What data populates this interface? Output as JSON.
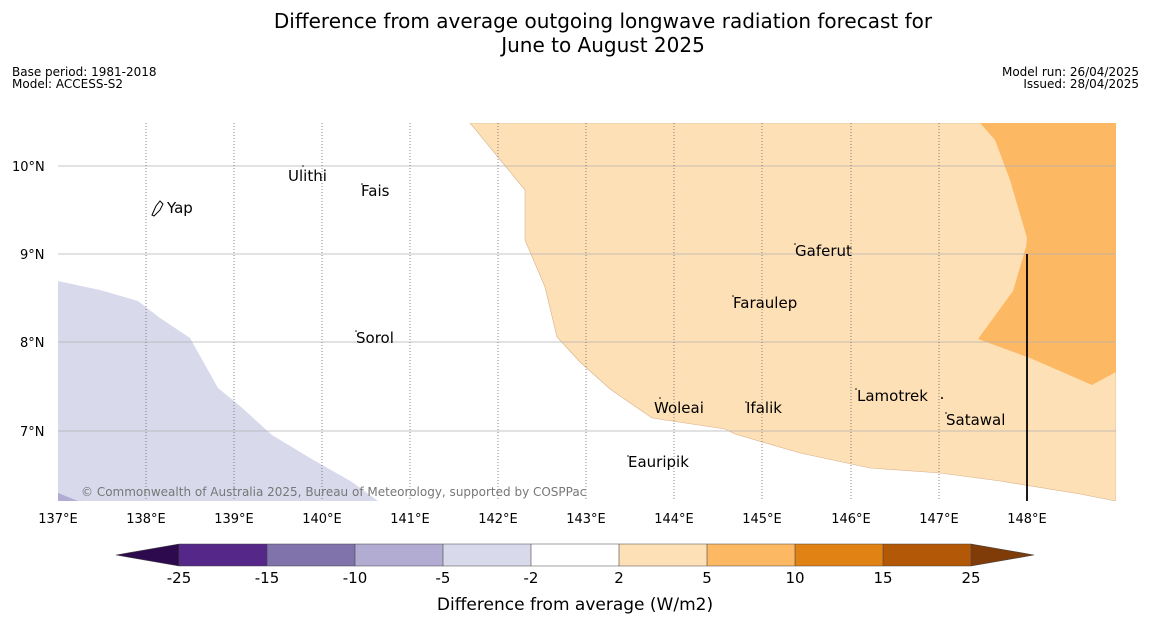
{
  "title": {
    "line1": "Difference from average outgoing longwave radiation forecast for",
    "line2": "June to August 2025"
  },
  "meta": {
    "base_period": "Base period: 1981-2018",
    "model": "Model: ACCESS-S2",
    "model_run": "Model run: 26/04/2025",
    "issued": "Issued: 28/04/2025"
  },
  "copyright": "© Commonwealth of Australia 2025, Bureau of Meteorology, supported by COSPPac",
  "axes": {
    "lon_labels": [
      "137°E",
      "138°E",
      "139°E",
      "140°E",
      "141°E",
      "142°E",
      "143°E",
      "144°E",
      "145°E",
      "146°E",
      "147°E",
      "148°E"
    ],
    "lat_labels": [
      "10°N",
      "9°N",
      "8°N",
      "7°N"
    ]
  },
  "islands": [
    {
      "name": "Yap"
    },
    {
      "name": "Ulithi"
    },
    {
      "name": "Fais"
    },
    {
      "name": "Gaferut"
    },
    {
      "name": "Faraulep"
    },
    {
      "name": "Sorol"
    },
    {
      "name": "Woleai"
    },
    {
      "name": "Ifalik"
    },
    {
      "name": "Lamotrek"
    },
    {
      "name": "Satawal"
    },
    {
      "name": "Eauripik"
    }
  ],
  "colorbar": {
    "title": "Difference from average (W/m2)",
    "ticks": [
      "-25",
      "-15",
      "-10",
      "-5",
      "-2",
      "2",
      "5",
      "10",
      "15",
      "25"
    ],
    "colors": {
      "under": "#2d0a4e",
      "c1": "#542788",
      "c2": "#8073ac",
      "c3": "#b2abd2",
      "c4": "#d8daeb",
      "c5": "#ffffff",
      "c6": "#fee0b6",
      "c7": "#fdb863",
      "c8": "#e08214",
      "c9": "#b35806",
      "over": "#7f3b08"
    }
  }
}
